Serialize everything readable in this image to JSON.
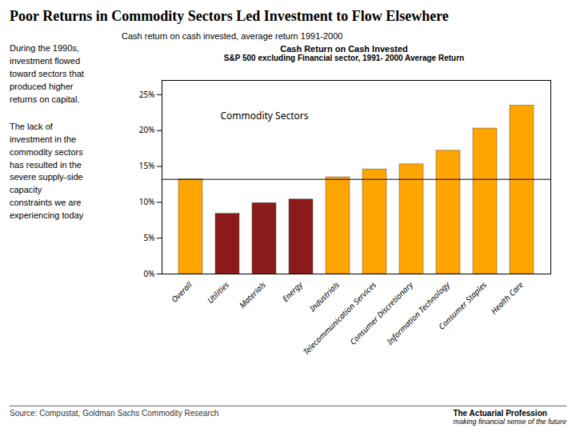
{
  "chart_data": {
    "type": "bar",
    "title": "Poor Returns in Commodity Sectors Led Investment to Flow Elsewhere",
    "chart_label": "Cash return on cash invested, average return 1991-2000",
    "subtitle": [
      "Cash Return on Cash Invested",
      "S&P 500 excluding Financial sector, 1991- 2000 Average Return"
    ],
    "notes": [
      "During the 1990s,\ninvestment flowed\ntoward sectors that\nproduced higher\nreturns on capital.",
      "The lack of\ninvestment in the\ncommodity sectors\nhas resulted in the\nsevere supply-side\ncapacity\nconstraints we are\nexperiencing today"
    ],
    "categories": [
      "Overall",
      "Utilities",
      "Materials",
      "Energy",
      "Industrials",
      "Telecommunication Services",
      "Consumer Discretionary",
      "Information Technology",
      "Consumer Staples",
      "Health Care"
    ],
    "values": [
      13.2,
      8.4,
      9.9,
      10.4,
      13.5,
      14.6,
      15.3,
      17.2,
      20.3,
      23.5
    ],
    "colors": [
      "#FFA500",
      "#8B1A1A",
      "#8B1A1A",
      "#8B1A1A",
      "#FFA500",
      "#FFA500",
      "#FFA500",
      "#FFA500",
      "#FFA500",
      "#FFA500"
    ],
    "reference_line": 13.2,
    "ylim": [
      0,
      27
    ],
    "yticks": [
      {
        "value": 0,
        "label": "0%"
      },
      {
        "value": 5,
        "label": "5%"
      },
      {
        "value": 10,
        "label": "10%"
      },
      {
        "value": 15,
        "label": "15%"
      },
      {
        "value": 20,
        "label": "20%"
      },
      {
        "value": 25,
        "label": "25%"
      }
    ],
    "annotation": "Commodity Sectors",
    "source": "Source: Compustat, Goldman Sachs Commodity Research",
    "logo_text": [
      "The Actuarial Profession",
      "making financial sense of the future"
    ],
    "grid": false
  }
}
